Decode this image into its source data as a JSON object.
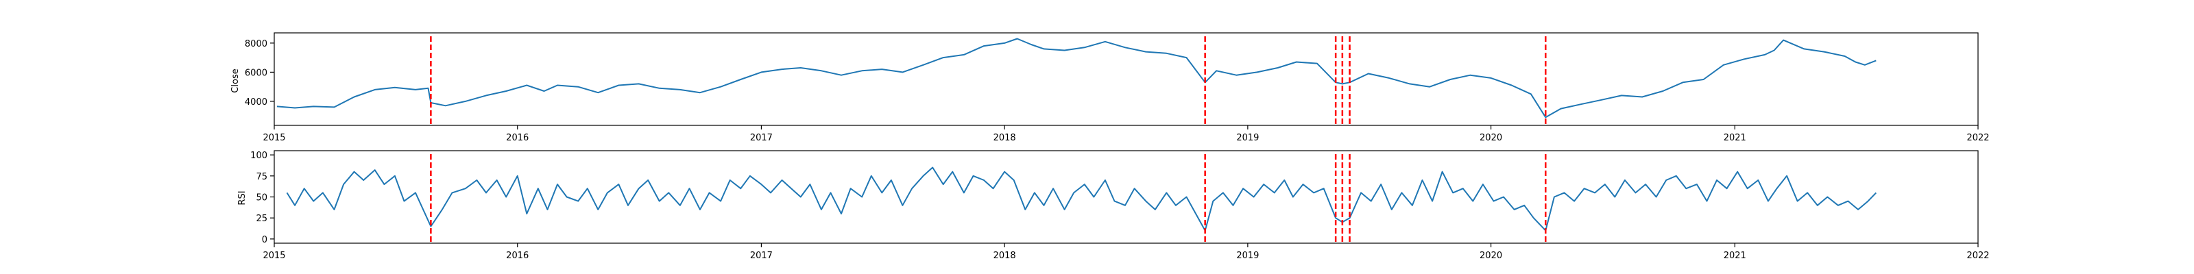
{
  "chart_data": [
    {
      "type": "line",
      "ylabel": "Close",
      "xlabel": "",
      "title": "",
      "x_range": [
        "2015-01-01",
        "2022-01-01"
      ],
      "ylim": [
        2350,
        8700
      ],
      "grid": false,
      "x_ticks": [
        "2015",
        "2016",
        "2017",
        "2018",
        "2019",
        "2020",
        "2021",
        "2022"
      ],
      "y_ticks": [
        4000,
        6000,
        8000
      ],
      "event_lines": [
        "2015-08-24",
        "2018-10-29",
        "2019-05-13",
        "2019-05-23",
        "2019-06-03",
        "2020-03-23"
      ],
      "series": [
        {
          "color": "#1f77b4",
          "points": [
            [
              "2015-01-05",
              3650
            ],
            [
              "2015-02-01",
              3550
            ],
            [
              "2015-03-01",
              3650
            ],
            [
              "2015-04-01",
              3600
            ],
            [
              "2015-05-01",
              4300
            ],
            [
              "2015-06-01",
              4800
            ],
            [
              "2015-07-01",
              4950
            ],
            [
              "2015-08-01",
              4800
            ],
            [
              "2015-08-20",
              4900
            ],
            [
              "2015-08-24",
              3900
            ],
            [
              "2015-09-15",
              3700
            ],
            [
              "2015-10-15",
              4000
            ],
            [
              "2015-11-15",
              4400
            ],
            [
              "2015-12-15",
              4700
            ],
            [
              "2016-01-15",
              5100
            ],
            [
              "2016-02-10",
              4700
            ],
            [
              "2016-03-01",
              5100
            ],
            [
              "2016-04-01",
              5000
            ],
            [
              "2016-05-01",
              4600
            ],
            [
              "2016-06-01",
              5100
            ],
            [
              "2016-07-01",
              5200
            ],
            [
              "2016-08-01",
              4900
            ],
            [
              "2016-09-01",
              4800
            ],
            [
              "2016-10-01",
              4600
            ],
            [
              "2016-11-01",
              5000
            ],
            [
              "2016-12-01",
              5500
            ],
            [
              "2017-01-01",
              6000
            ],
            [
              "2017-02-01",
              6200
            ],
            [
              "2017-03-01",
              6300
            ],
            [
              "2017-04-01",
              6100
            ],
            [
              "2017-05-01",
              5800
            ],
            [
              "2017-06-01",
              6100
            ],
            [
              "2017-07-01",
              6200
            ],
            [
              "2017-08-01",
              6000
            ],
            [
              "2017-09-01",
              6500
            ],
            [
              "2017-10-01",
              7000
            ],
            [
              "2017-11-01",
              7200
            ],
            [
              "2017-12-01",
              7800
            ],
            [
              "2018-01-01",
              8000
            ],
            [
              "2018-01-20",
              8300
            ],
            [
              "2018-02-10",
              7900
            ],
            [
              "2018-03-01",
              7600
            ],
            [
              "2018-04-01",
              7500
            ],
            [
              "2018-05-01",
              7700
            ],
            [
              "2018-06-01",
              8100
            ],
            [
              "2018-07-01",
              7700
            ],
            [
              "2018-08-01",
              7400
            ],
            [
              "2018-09-01",
              7300
            ],
            [
              "2018-10-01",
              7000
            ],
            [
              "2018-10-29",
              5300
            ],
            [
              "2018-11-15",
              6100
            ],
            [
              "2018-12-15",
              5800
            ],
            [
              "2019-01-15",
              6000
            ],
            [
              "2019-02-15",
              6300
            ],
            [
              "2019-03-15",
              6700
            ],
            [
              "2019-04-15",
              6600
            ],
            [
              "2019-05-13",
              5300
            ],
            [
              "2019-05-23",
              5200
            ],
            [
              "2019-06-03",
              5300
            ],
            [
              "2019-07-01",
              5900
            ],
            [
              "2019-08-01",
              5600
            ],
            [
              "2019-09-01",
              5200
            ],
            [
              "2019-10-01",
              5000
            ],
            [
              "2019-11-01",
              5500
            ],
            [
              "2019-12-01",
              5800
            ],
            [
              "2020-01-01",
              5600
            ],
            [
              "2020-02-01",
              5100
            ],
            [
              "2020-03-01",
              4500
            ],
            [
              "2020-03-23",
              2900
            ],
            [
              "2020-04-15",
              3500
            ],
            [
              "2020-05-15",
              3800
            ],
            [
              "2020-06-15",
              4100
            ],
            [
              "2020-07-15",
              4400
            ],
            [
              "2020-08-15",
              4300
            ],
            [
              "2020-09-15",
              4700
            ],
            [
              "2020-10-15",
              5300
            ],
            [
              "2020-11-15",
              5500
            ],
            [
              "2020-12-15",
              6500
            ],
            [
              "2021-01-15",
              6900
            ],
            [
              "2021-02-15",
              7200
            ],
            [
              "2021-03-01",
              7500
            ],
            [
              "2021-03-15",
              8200
            ],
            [
              "2021-04-15",
              7600
            ],
            [
              "2021-05-15",
              7400
            ],
            [
              "2021-06-15",
              7100
            ],
            [
              "2021-07-01",
              6700
            ],
            [
              "2021-07-15",
              6500
            ],
            [
              "2021-08-01",
              6800
            ]
          ]
        }
      ]
    },
    {
      "type": "line",
      "ylabel": "RSI",
      "xlabel": "",
      "title": "",
      "x_range": [
        "2015-01-01",
        "2022-01-01"
      ],
      "ylim": [
        -5,
        105
      ],
      "grid": false,
      "x_ticks": [
        "2015",
        "2016",
        "2017",
        "2018",
        "2019",
        "2020",
        "2021",
        "2022"
      ],
      "y_ticks": [
        0,
        25,
        50,
        75,
        100
      ],
      "event_lines": [
        "2015-08-24",
        "2018-10-29",
        "2019-05-13",
        "2019-05-23",
        "2019-06-03",
        "2020-03-23"
      ],
      "series": [
        {
          "color": "#1f77b4",
          "points": [
            [
              "2015-01-20",
              55
            ],
            [
              "2015-02-01",
              40
            ],
            [
              "2015-02-15",
              60
            ],
            [
              "2015-03-01",
              45
            ],
            [
              "2015-03-15",
              55
            ],
            [
              "2015-04-01",
              35
            ],
            [
              "2015-04-15",
              65
            ],
            [
              "2015-05-01",
              80
            ],
            [
              "2015-05-15",
              70
            ],
            [
              "2015-06-01",
              82
            ],
            [
              "2015-06-15",
              65
            ],
            [
              "2015-07-01",
              75
            ],
            [
              "2015-07-15",
              45
            ],
            [
              "2015-08-01",
              55
            ],
            [
              "2015-08-24",
              15
            ],
            [
              "2015-09-10",
              35
            ],
            [
              "2015-09-25",
              55
            ],
            [
              "2015-10-15",
              60
            ],
            [
              "2015-11-01",
              70
            ],
            [
              "2015-11-15",
              55
            ],
            [
              "2015-12-01",
              70
            ],
            [
              "2015-12-15",
              50
            ],
            [
              "2016-01-01",
              75
            ],
            [
              "2016-01-15",
              30
            ],
            [
              "2016-02-01",
              60
            ],
            [
              "2016-02-15",
              35
            ],
            [
              "2016-03-01",
              65
            ],
            [
              "2016-03-15",
              50
            ],
            [
              "2016-04-01",
              45
            ],
            [
              "2016-04-15",
              60
            ],
            [
              "2016-05-01",
              35
            ],
            [
              "2016-05-15",
              55
            ],
            [
              "2016-06-01",
              65
            ],
            [
              "2016-06-15",
              40
            ],
            [
              "2016-07-01",
              60
            ],
            [
              "2016-07-15",
              70
            ],
            [
              "2016-08-01",
              45
            ],
            [
              "2016-08-15",
              55
            ],
            [
              "2016-09-01",
              40
            ],
            [
              "2016-09-15",
              60
            ],
            [
              "2016-10-01",
              35
            ],
            [
              "2016-10-15",
              55
            ],
            [
              "2016-11-01",
              45
            ],
            [
              "2016-11-15",
              70
            ],
            [
              "2016-12-01",
              60
            ],
            [
              "2016-12-15",
              75
            ],
            [
              "2017-01-01",
              65
            ],
            [
              "2017-01-15",
              55
            ],
            [
              "2017-02-01",
              70
            ],
            [
              "2017-02-15",
              60
            ],
            [
              "2017-03-01",
              50
            ],
            [
              "2017-03-15",
              65
            ],
            [
              "2017-04-01",
              35
            ],
            [
              "2017-04-15",
              55
            ],
            [
              "2017-05-01",
              30
            ],
            [
              "2017-05-15",
              60
            ],
            [
              "2017-06-01",
              50
            ],
            [
              "2017-06-15",
              75
            ],
            [
              "2017-07-01",
              55
            ],
            [
              "2017-07-15",
              70
            ],
            [
              "2017-08-01",
              40
            ],
            [
              "2017-08-15",
              60
            ],
            [
              "2017-09-01",
              75
            ],
            [
              "2017-09-15",
              85
            ],
            [
              "2017-10-01",
              65
            ],
            [
              "2017-10-15",
              80
            ],
            [
              "2017-11-01",
              55
            ],
            [
              "2017-11-15",
              75
            ],
            [
              "2017-12-01",
              70
            ],
            [
              "2017-12-15",
              60
            ],
            [
              "2018-01-01",
              80
            ],
            [
              "2018-01-15",
              70
            ],
            [
              "2018-02-01",
              35
            ],
            [
              "2018-02-15",
              55
            ],
            [
              "2018-03-01",
              40
            ],
            [
              "2018-03-15",
              60
            ],
            [
              "2018-04-01",
              35
            ],
            [
              "2018-04-15",
              55
            ],
            [
              "2018-05-01",
              65
            ],
            [
              "2018-05-15",
              50
            ],
            [
              "2018-06-01",
              70
            ],
            [
              "2018-06-15",
              45
            ],
            [
              "2018-07-01",
              40
            ],
            [
              "2018-07-15",
              60
            ],
            [
              "2018-08-01",
              45
            ],
            [
              "2018-08-15",
              35
            ],
            [
              "2018-09-01",
              55
            ],
            [
              "2018-09-15",
              40
            ],
            [
              "2018-10-01",
              50
            ],
            [
              "2018-10-29",
              10
            ],
            [
              "2018-11-10",
              45
            ],
            [
              "2018-11-25",
              55
            ],
            [
              "2018-12-10",
              40
            ],
            [
              "2018-12-25",
              60
            ],
            [
              "2019-01-10",
              50
            ],
            [
              "2019-01-25",
              65
            ],
            [
              "2019-02-10",
              55
            ],
            [
              "2019-02-25",
              70
            ],
            [
              "2019-03-10",
              50
            ],
            [
              "2019-03-25",
              65
            ],
            [
              "2019-04-10",
              55
            ],
            [
              "2019-04-25",
              60
            ],
            [
              "2019-05-13",
              25
            ],
            [
              "2019-05-23",
              20
            ],
            [
              "2019-06-03",
              25
            ],
            [
              "2019-06-20",
              55
            ],
            [
              "2019-07-05",
              45
            ],
            [
              "2019-07-20",
              65
            ],
            [
              "2019-08-05",
              35
            ],
            [
              "2019-08-20",
              55
            ],
            [
              "2019-09-05",
              40
            ],
            [
              "2019-09-20",
              70
            ],
            [
              "2019-10-05",
              45
            ],
            [
              "2019-10-20",
              80
            ],
            [
              "2019-11-05",
              55
            ],
            [
              "2019-11-20",
              60
            ],
            [
              "2019-12-05",
              45
            ],
            [
              "2019-12-20",
              65
            ],
            [
              "2020-01-05",
              45
            ],
            [
              "2020-01-20",
              50
            ],
            [
              "2020-02-05",
              35
            ],
            [
              "2020-02-20",
              40
            ],
            [
              "2020-03-05",
              25
            ],
            [
              "2020-03-23",
              10
            ],
            [
              "2020-04-05",
              50
            ],
            [
              "2020-04-20",
              55
            ],
            [
              "2020-05-05",
              45
            ],
            [
              "2020-05-20",
              60
            ],
            [
              "2020-06-05",
              55
            ],
            [
              "2020-06-20",
              65
            ],
            [
              "2020-07-05",
              50
            ],
            [
              "2020-07-20",
              70
            ],
            [
              "2020-08-05",
              55
            ],
            [
              "2020-08-20",
              65
            ],
            [
              "2020-09-05",
              50
            ],
            [
              "2020-09-20",
              70
            ],
            [
              "2020-10-05",
              75
            ],
            [
              "2020-10-20",
              60
            ],
            [
              "2020-11-05",
              65
            ],
            [
              "2020-11-20",
              45
            ],
            [
              "2020-12-05",
              70
            ],
            [
              "2020-12-20",
              60
            ],
            [
              "2021-01-05",
              80
            ],
            [
              "2021-01-20",
              60
            ],
            [
              "2021-02-05",
              70
            ],
            [
              "2021-02-20",
              45
            ],
            [
              "2021-03-05",
              60
            ],
            [
              "2021-03-20",
              75
            ],
            [
              "2021-04-05",
              45
            ],
            [
              "2021-04-20",
              55
            ],
            [
              "2021-05-05",
              40
            ],
            [
              "2021-05-20",
              50
            ],
            [
              "2021-06-05",
              40
            ],
            [
              "2021-06-20",
              45
            ],
            [
              "2021-07-05",
              35
            ],
            [
              "2021-07-20",
              45
            ],
            [
              "2021-08-01",
              55
            ]
          ]
        }
      ]
    }
  ]
}
